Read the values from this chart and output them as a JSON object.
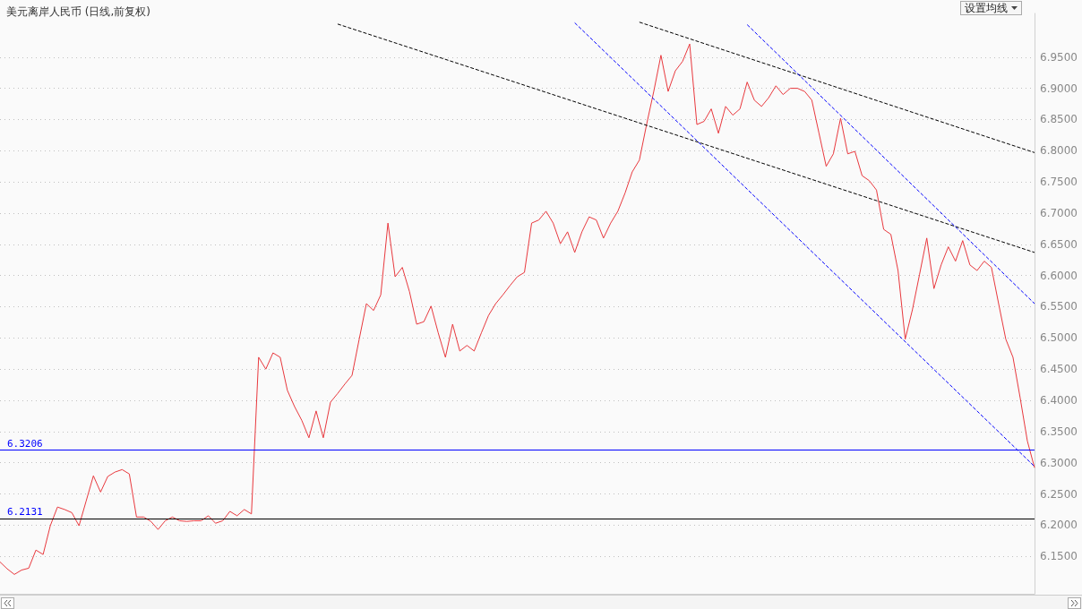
{
  "chart_data": {
    "type": "line",
    "title": "美元离岸人民币 (日线,前复权)",
    "annotations": [
      "设置均线"
    ],
    "categories": [
      null,
      null,
      null,
      null,
      null,
      null,
      null,
      null,
      null,
      null,
      null,
      null,
      null,
      null,
      null,
      null,
      null,
      null,
      null,
      null,
      null,
      null,
      null,
      null,
      null,
      null,
      null,
      null,
      null,
      null,
      null,
      null,
      null,
      null,
      null,
      null,
      null,
      null,
      null,
      null,
      null,
      null,
      null,
      null,
      null,
      null,
      null,
      null,
      null,
      null,
      null,
      null,
      null,
      null,
      null,
      null,
      null,
      null,
      null,
      null,
      null,
      null,
      null,
      null,
      null,
      null,
      null,
      null,
      null,
      null,
      null,
      null,
      null,
      null,
      null,
      null,
      null,
      null,
      null,
      null,
      null,
      null,
      null,
      null,
      null,
      null,
      null,
      null,
      null,
      null,
      null,
      null,
      null,
      null,
      null,
      null,
      null,
      null,
      null,
      null,
      null,
      null,
      null,
      null,
      null,
      null,
      null,
      null,
      null,
      null,
      null,
      null,
      null,
      null,
      null,
      null,
      null,
      null,
      null,
      null,
      null,
      null,
      null,
      null,
      null,
      null,
      null,
      null,
      null,
      null,
      null,
      null,
      null,
      null,
      null,
      null,
      null,
      null,
      null,
      null,
      null,
      null,
      null,
      null,
      null
    ],
    "series": [
      {
        "color": "#e8383d",
        "values": [
          6.141,
          6.13,
          6.121,
          6.128,
          6.131,
          6.16,
          6.153,
          6.199,
          6.229,
          6.225,
          6.22,
          6.199,
          6.239,
          6.279,
          6.253,
          6.278,
          6.285,
          6.289,
          6.282,
          6.213,
          6.213,
          6.206,
          6.193,
          6.207,
          6.213,
          6.207,
          6.206,
          6.207,
          6.207,
          6.215,
          6.203,
          6.207,
          6.222,
          6.215,
          6.225,
          6.218,
          6.469,
          6.45,
          6.476,
          6.469,
          6.416,
          6.39,
          6.368,
          6.34,
          6.383,
          6.34,
          6.397,
          6.411,
          6.426,
          6.44,
          6.498,
          6.555,
          6.544,
          6.569,
          6.684,
          6.598,
          6.613,
          6.574,
          6.522,
          6.526,
          6.551,
          6.508,
          6.469,
          6.522,
          6.479,
          6.488,
          6.479,
          6.508,
          6.536,
          6.555,
          6.569,
          6.584,
          6.598,
          6.605,
          6.684,
          6.689,
          6.703,
          6.684,
          6.651,
          6.67,
          6.637,
          6.67,
          6.694,
          6.689,
          6.66,
          6.684,
          6.703,
          6.732,
          6.766,
          6.785,
          6.842,
          6.895,
          6.953,
          6.895,
          6.928,
          6.943,
          6.971,
          6.842,
          6.847,
          6.867,
          6.828,
          6.871,
          6.857,
          6.867,
          6.91,
          6.881,
          6.871,
          6.885,
          6.904,
          6.89,
          6.9,
          6.9,
          6.895,
          6.881,
          6.828,
          6.775,
          6.795,
          6.852,
          6.795,
          6.799,
          6.76,
          6.752,
          6.737,
          6.674,
          6.666,
          6.608,
          6.498,
          6.545,
          6.602,
          6.66,
          6.579,
          6.617,
          6.646,
          6.623,
          6.656,
          6.617,
          6.608,
          6.623,
          6.613,
          6.555,
          6.498,
          6.469,
          6.404,
          6.335,
          6.292
        ]
      },
      {
        "type": "line",
        "line_style": "dashed",
        "color": "#000000",
        "values": [
          null,
          null,
          null,
          null,
          null,
          null,
          null,
          null,
          null,
          null,
          null,
          null,
          null,
          null,
          null,
          null,
          null,
          null,
          null,
          null,
          null,
          null,
          null,
          null,
          null,
          null,
          null,
          null,
          null,
          null,
          null,
          null,
          null,
          null,
          null,
          null,
          null,
          null,
          null,
          null,
          null,
          null,
          null,
          null,
          null,
          null,
          null,
          null,
          null,
          null,
          null,
          null,
          null,
          null,
          null,
          null,
          null,
          null,
          null,
          null,
          null,
          null,
          null,
          null,
          null,
          null,
          null,
          null,
          null,
          null,
          null,
          null,
          null,
          null,
          null,
          null,
          null,
          null,
          null,
          null,
          null,
          null,
          null,
          null,
          null,
          null,
          null,
          null,
          null,
          7.006,
          null,
          null,
          null,
          null,
          null,
          null,
          null,
          null,
          null,
          null,
          null,
          null,
          null,
          null,
          null,
          null,
          null,
          null,
          null,
          null,
          null,
          null,
          null,
          null,
          null,
          null,
          null,
          null,
          null,
          null,
          null,
          null,
          null,
          null,
          null,
          null,
          null,
          null,
          null,
          null,
          null,
          null,
          null,
          null,
          null,
          null,
          null,
          null,
          null,
          null,
          null,
          null,
          null,
          null,
          6.797
        ]
      },
      {
        "type": "line",
        "line_style": "dashed",
        "color": "#000000",
        "values": [
          null,
          null,
          null,
          null,
          null,
          null,
          null,
          null,
          null,
          null,
          null,
          null,
          null,
          null,
          null,
          null,
          null,
          null,
          null,
          null,
          null,
          null,
          null,
          null,
          null,
          null,
          null,
          null,
          null,
          null,
          null,
          null,
          null,
          null,
          null,
          null,
          null,
          null,
          null,
          null,
          null,
          null,
          null,
          null,
          null,
          null,
          null,
          7.003,
          null,
          null,
          null,
          null,
          null,
          null,
          null,
          null,
          null,
          null,
          null,
          null,
          null,
          null,
          null,
          null,
          null,
          null,
          null,
          null,
          null,
          null,
          null,
          null,
          null,
          null,
          null,
          null,
          null,
          null,
          null,
          null,
          null,
          null,
          null,
          null,
          null,
          null,
          null,
          null,
          null,
          null,
          null,
          null,
          null,
          null,
          null,
          null,
          null,
          null,
          null,
          null,
          null,
          null,
          null,
          null,
          null,
          null,
          null,
          null,
          null,
          null,
          null,
          null,
          null,
          null,
          null,
          null,
          null,
          null,
          null,
          null,
          null,
          null,
          null,
          null,
          null,
          null,
          null,
          null,
          null,
          null,
          null,
          null,
          null,
          null,
          null,
          null,
          null,
          null,
          null,
          null,
          null,
          null,
          null,
          null,
          6.637
        ]
      },
      {
        "type": "line",
        "line_style": "dashed",
        "color": "#0000ff",
        "values": [
          null,
          null,
          null,
          null,
          null,
          null,
          null,
          null,
          null,
          null,
          null,
          null,
          null,
          null,
          null,
          null,
          null,
          null,
          null,
          null,
          null,
          null,
          null,
          null,
          null,
          null,
          null,
          null,
          null,
          null,
          null,
          null,
          null,
          null,
          null,
          null,
          null,
          null,
          null,
          null,
          null,
          null,
          null,
          null,
          null,
          null,
          null,
          null,
          null,
          null,
          null,
          null,
          null,
          null,
          null,
          null,
          null,
          null,
          null,
          null,
          null,
          null,
          null,
          null,
          null,
          null,
          null,
          null,
          null,
          null,
          null,
          null,
          null,
          null,
          null,
          null,
          null,
          null,
          null,
          null,
          7.005,
          null,
          null,
          null,
          null,
          null,
          null,
          null,
          null,
          null,
          null,
          null,
          null,
          null,
          null,
          null,
          null,
          null,
          null,
          null,
          null,
          null,
          null,
          null,
          null,
          null,
          null,
          null,
          null,
          null,
          null,
          null,
          null,
          null,
          null,
          null,
          null,
          null,
          null,
          null,
          null,
          null,
          null,
          null,
          null,
          null,
          null,
          null,
          null,
          null,
          null,
          null,
          null,
          null,
          null,
          null,
          null,
          null,
          null,
          null,
          null,
          null,
          null,
          null,
          6.294
        ]
      },
      {
        "type": "line",
        "line_style": "dashed",
        "color": "#0000ff",
        "values": [
          null,
          null,
          null,
          null,
          null,
          null,
          null,
          null,
          null,
          null,
          null,
          null,
          null,
          null,
          null,
          null,
          null,
          null,
          null,
          null,
          null,
          null,
          null,
          null,
          null,
          null,
          null,
          null,
          null,
          null,
          null,
          null,
          null,
          null,
          null,
          null,
          null,
          null,
          null,
          null,
          null,
          null,
          null,
          null,
          null,
          null,
          null,
          null,
          null,
          null,
          null,
          null,
          null,
          null,
          null,
          null,
          null,
          null,
          null,
          null,
          null,
          null,
          null,
          null,
          null,
          null,
          null,
          null,
          null,
          null,
          null,
          null,
          null,
          null,
          null,
          null,
          null,
          null,
          null,
          null,
          null,
          null,
          null,
          null,
          null,
          null,
          null,
          null,
          null,
          null,
          null,
          null,
          null,
          null,
          null,
          null,
          null,
          null,
          null,
          null,
          null,
          null,
          null,
          null,
          7.002,
          null,
          null,
          null,
          null,
          null,
          null,
          null,
          null,
          null,
          null,
          null,
          null,
          null,
          null,
          null,
          null,
          null,
          null,
          null,
          null,
          null,
          null,
          null,
          null,
          null,
          null,
          null,
          null,
          null,
          null,
          null,
          null,
          null,
          null,
          null,
          null,
          null,
          null,
          null,
          6.555
        ]
      }
    ],
    "ylim": [
      6.09,
      7.02
    ],
    "yticks": [
      {
        "value": 6.15,
        "label": "6.1500"
      },
      {
        "value": 6.2,
        "label": "6.2000"
      },
      {
        "value": 6.25,
        "label": "6.2500"
      },
      {
        "value": 6.3,
        "label": "6.3000"
      },
      {
        "value": 6.35,
        "label": "6.3500"
      },
      {
        "value": 6.4,
        "label": "6.4000"
      },
      {
        "value": 6.45,
        "label": "6.4500"
      },
      {
        "value": 6.5,
        "label": "6.5000"
      },
      {
        "value": 6.55,
        "label": "6.5500"
      },
      {
        "value": 6.6,
        "label": "6.6000"
      },
      {
        "value": 6.65,
        "label": "6.6500"
      },
      {
        "value": 6.7,
        "label": "6.7000"
      },
      {
        "value": 6.75,
        "label": "6.7500"
      },
      {
        "value": 6.8,
        "label": "6.8000"
      },
      {
        "value": 6.85,
        "label": "6.8500"
      },
      {
        "value": 6.9,
        "label": "6.9000"
      },
      {
        "value": 6.95,
        "label": "6.9500"
      }
    ],
    "ref_lines": [
      {
        "axis": "y",
        "value": 6.3206,
        "label": "6.3206",
        "color": "#0000ff"
      },
      {
        "axis": "y",
        "value": 6.2131,
        "label": "6.2131",
        "color": "#000000"
      }
    ],
    "grid": "y",
    "tick_labels": "y"
  }
}
